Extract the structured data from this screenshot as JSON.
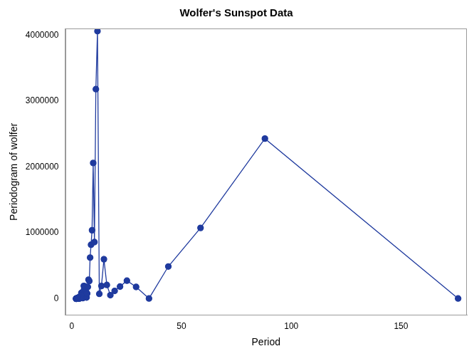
{
  "chart_data": {
    "type": "line",
    "title": "Wolfer's Sunspot Data",
    "x_label": "Period",
    "y_label": "Periodogram of wolfer",
    "x": [
      2,
      2.02,
      2.05,
      2.07,
      2.1,
      2.12,
      2.15,
      2.17,
      2.2,
      2.23,
      2.26,
      2.29,
      2.32,
      2.35,
      2.38,
      2.41,
      2.44,
      2.48,
      2.51,
      2.55,
      2.59,
      2.63,
      2.67,
      2.71,
      2.75,
      2.79,
      2.84,
      2.89,
      2.93,
      2.98,
      3.03,
      3.09,
      3.14,
      3.2,
      3.26,
      3.32,
      3.38,
      3.45,
      3.52,
      3.59,
      3.67,
      3.74,
      3.83,
      3.91,
      4,
      4.09,
      4.19,
      4.29,
      4.4,
      4.51,
      4.63,
      4.76,
      4.89,
      5.03,
      5.18,
      5.33,
      5.5,
      5.68,
      5.87,
      6.07,
      6.29,
      6.52,
      6.77,
      7.04,
      7.33,
      7.65,
      8,
      8.38,
      8.8,
      9.26,
      9.78,
      10.35,
      11,
      11.73,
      12.57,
      13.54,
      14.67,
      16,
      17.6,
      19.56,
      22,
      25.14,
      29.33,
      35.2,
      44,
      58.67,
      88,
      176
    ],
    "values": [
      1000,
      2000,
      1000,
      3000,
      2000,
      3000,
      1000,
      4000,
      2000,
      5000,
      3000,
      2000,
      6000,
      4000,
      3000,
      7000,
      2000,
      5000,
      4000,
      9000,
      6000,
      3000,
      8000,
      5000,
      10000,
      7000,
      3000,
      12000,
      9000,
      4000,
      18000,
      10000,
      6000,
      15000,
      8000,
      20000,
      12000,
      5000,
      25000,
      15000,
      8000,
      35000,
      20000,
      10000,
      30000,
      15000,
      45000,
      25000,
      90000,
      30000,
      60000,
      40000,
      100000,
      10000,
      20000,
      60000,
      195000,
      150000,
      190000,
      70000,
      180000,
      110000,
      20000,
      80000,
      180000,
      290000,
      270000,
      625000,
      820000,
      1040000,
      2060000,
      860000,
      3180000,
      4060000,
      75000,
      195000,
      600000,
      210000,
      55000,
      120000,
      185000,
      275000,
      180000,
      5000,
      490000,
      1075000,
      2430000,
      5000
    ],
    "color": "#1f3a9e",
    "marker": "circle",
    "line_style": "solid",
    "xlim": [
      -3,
      180
    ],
    "xticks": [
      0,
      50,
      100,
      150
    ],
    "ylim": [
      -250000,
      4100000
    ],
    "yticks": [
      0,
      1000000,
      2000000,
      3000000,
      4000000
    ],
    "grid": false
  }
}
